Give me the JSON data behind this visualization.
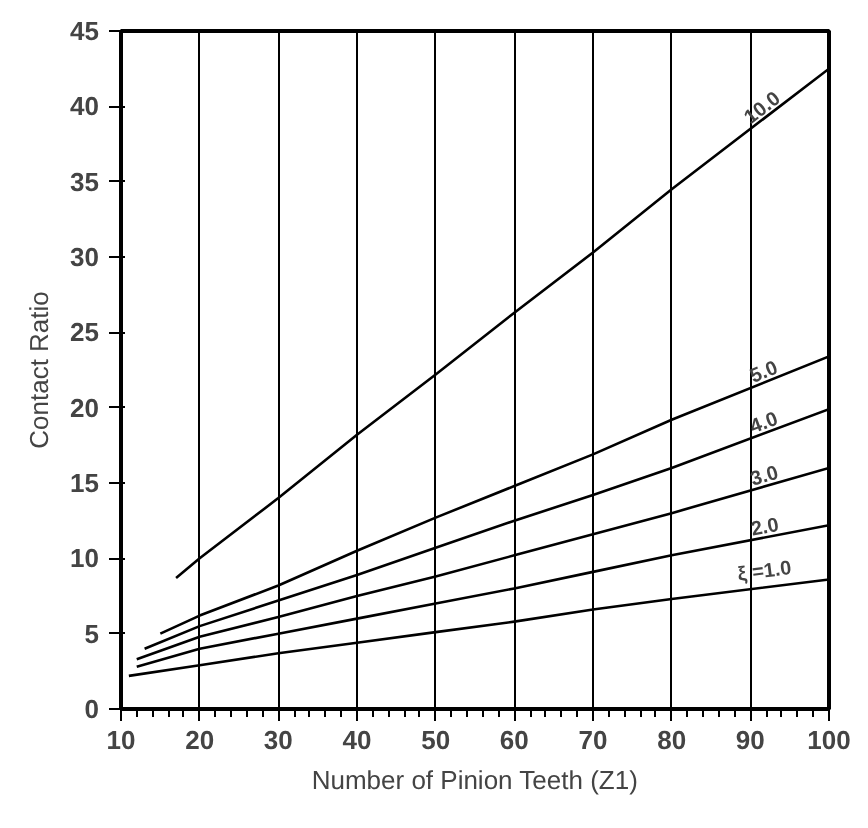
{
  "chart_data": {
    "type": "line",
    "xlabel": "Number of Pinion Teeth (Z1)",
    "ylabel": "Contact Ratio",
    "series": [
      {
        "name": "10.0",
        "color": "#000000",
        "x": [
          17,
          20,
          30,
          40,
          50,
          60,
          70,
          80,
          100
        ],
        "values": [
          8.7,
          10,
          14,
          18.2,
          22.2,
          26.3,
          30.3,
          34.5,
          42.5
        ]
      },
      {
        "name": "5.0",
        "color": "#000000",
        "x": [
          15,
          20,
          30,
          40,
          50,
          60,
          70,
          80,
          100
        ],
        "values": [
          5.0,
          6.2,
          8.2,
          10.5,
          12.7,
          14.8,
          16.9,
          19.2,
          23.4
        ]
      },
      {
        "name": "4.0",
        "color": "#000000",
        "x": [
          13,
          20,
          30,
          40,
          50,
          60,
          70,
          80,
          100
        ],
        "values": [
          4.0,
          5.5,
          7.2,
          8.9,
          10.7,
          12.5,
          14.2,
          16,
          19.9
        ]
      },
      {
        "name": "3.0",
        "color": "#000000",
        "x": [
          12,
          20,
          30,
          40,
          50,
          60,
          70,
          80,
          100
        ],
        "values": [
          3.3,
          4.8,
          6.1,
          7.5,
          8.8,
          10.2,
          11.6,
          13,
          16
        ]
      },
      {
        "name": "2.0",
        "color": "#000000",
        "x": [
          12,
          20,
          30,
          40,
          50,
          60,
          70,
          80,
          100
        ],
        "values": [
          2.8,
          4.0,
          5.0,
          6.0,
          7.0,
          8.0,
          9.1,
          10.2,
          12.2
        ]
      },
      {
        "name": "ξ =1.0",
        "color": "#000000",
        "x": [
          11,
          20,
          30,
          40,
          50,
          60,
          70,
          80,
          100
        ],
        "values": [
          2.2,
          2.9,
          3.7,
          4.4,
          5.1,
          5.8,
          6.6,
          7.3,
          8.6
        ]
      }
    ],
    "xlim": [
      10,
      100
    ],
    "ylim": [
      0,
      45
    ],
    "xticks": [
      10,
      20,
      30,
      40,
      50,
      60,
      70,
      80,
      90,
      100
    ],
    "yticks": [
      0,
      5,
      10,
      15,
      20,
      25,
      30,
      35,
      40,
      45
    ],
    "grid": "x",
    "marker": "none",
    "line_style": "solid"
  }
}
